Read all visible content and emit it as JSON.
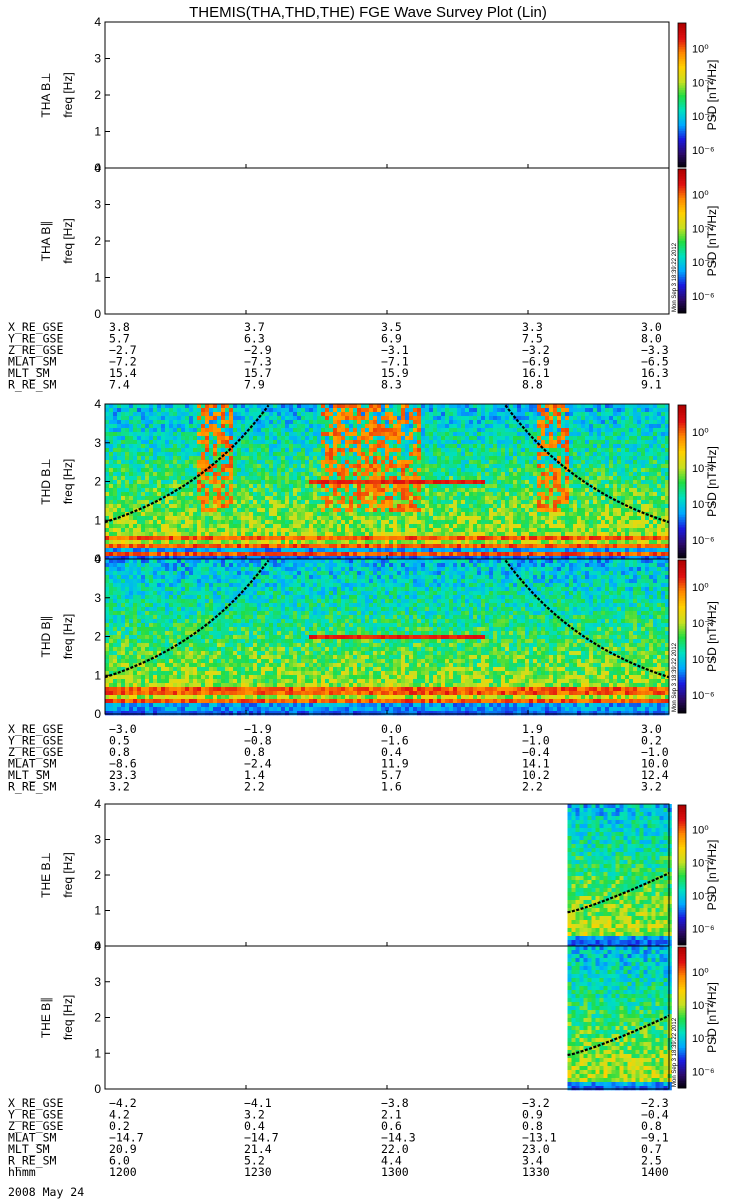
{
  "title": "THEMIS(THA,THD,THE) FGE Wave Survey Plot (Lin)",
  "date": "2008 May 24",
  "stamp": "Mon Sep  3 18:39:22 2012",
  "colorbar": {
    "label": "PSD [nT²/Hz]",
    "ticks": [
      "10⁰",
      "10⁻²",
      "10⁻⁴",
      "10⁻⁶"
    ],
    "tick_values": [
      0,
      -2,
      -4,
      -6
    ],
    "log_range": [
      -7,
      1.5
    ],
    "colors": [
      "#000000",
      "#2b0a6b",
      "#1a1adf",
      "#00aaff",
      "#00e0c0",
      "#22dd44",
      "#c8e020",
      "#ffd000",
      "#ff8800",
      "#e01010",
      "#b00000"
    ]
  },
  "panel_labels": {
    "tha": [
      "THA B⊥",
      "THA B∥"
    ],
    "thd": [
      "THD B⊥",
      "THD B∥"
    ],
    "the": [
      "THE B⊥",
      "THE B∥"
    ]
  },
  "freq_label": "freq [Hz]",
  "y_ticks": [
    "0",
    "1",
    "2",
    "3",
    "4"
  ],
  "ephem_labels": {
    "tha": [
      "X_RE_GSE",
      "Y_RE_GSE",
      "Z_RE_GSE",
      "MLAT_SM",
      "MLT_SM",
      "R_RE_SM"
    ],
    "thd": [
      "X_RE_GSE",
      "Y_RE_GSE",
      "Z_RE_GSE",
      "MLAT_SM",
      "MLT_SM",
      "R_RE_SM"
    ],
    "the": [
      "X_RE_GSE",
      "Y_RE_GSE",
      "Z_RE_GSE",
      "MLAT_SM",
      "MLT_SM",
      "R_RE_SM",
      "hhmm"
    ]
  },
  "ephem_values": {
    "tha": [
      [
        "3.8",
        "3.7",
        "3.5",
        "3.3",
        "3.0"
      ],
      [
        "5.7",
        "6.3",
        "6.9",
        "7.5",
        "8.0"
      ],
      [
        "−2.7",
        "−2.9",
        "−3.1",
        "−3.2",
        "−3.3"
      ],
      [
        "−7.2",
        "−7.3",
        "−7.1",
        "−6.9",
        "−6.5"
      ],
      [
        "15.4",
        "15.7",
        "15.9",
        "16.1",
        "16.3"
      ],
      [
        "7.4",
        "7.9",
        "8.3",
        "8.8",
        "9.1"
      ]
    ],
    "thd": [
      [
        "−3.0",
        "−1.9",
        "0.0",
        "1.9",
        "3.0"
      ],
      [
        "0.5",
        "−0.8",
        "−1.6",
        "−1.0",
        "0.2"
      ],
      [
        "0.8",
        "0.8",
        "0.4",
        "−0.4",
        "−1.0"
      ],
      [
        "−8.6",
        "−2.4",
        "11.9",
        "14.1",
        "10.0"
      ],
      [
        "23.3",
        "1.4",
        "5.7",
        "10.2",
        "12.4"
      ],
      [
        "3.2",
        "2.2",
        "1.6",
        "2.2",
        "3.2"
      ]
    ],
    "the": [
      [
        "−4.2",
        "−4.1",
        "−3.8",
        "−3.2",
        "−2.3"
      ],
      [
        "4.2",
        "3.2",
        "2.1",
        "0.9",
        "−0.4"
      ],
      [
        "0.2",
        "0.4",
        "0.6",
        "0.8",
        "0.8"
      ],
      [
        "−14.7",
        "−14.7",
        "−14.3",
        "−13.1",
        "−9.1"
      ],
      [
        "20.9",
        "21.4",
        "22.0",
        "23.0",
        "0.7"
      ],
      [
        "6.0",
        "5.2",
        "4.4",
        "3.4",
        "2.5"
      ],
      [
        "1200",
        "1230",
        "1300",
        "1330",
        "1400"
      ]
    ]
  },
  "chart_data": {
    "type": "heatmap",
    "title": "THEMIS(THA,THD,THE) FGE Wave Survey Plot (Lin)",
    "xlabel": "hhmm",
    "x_range": [
      "1200",
      "1400"
    ],
    "ylabel": "freq [Hz]",
    "ylim": [
      0,
      4
    ],
    "zlabel": "PSD [nT²/Hz]",
    "zscale": "log",
    "zlim": [
      1e-07,
      30
    ],
    "panels": [
      {
        "name": "THA B⊥",
        "data_coverage_x": null
      },
      {
        "name": "THA B∥",
        "data_coverage_x": null
      },
      {
        "name": "THD B⊥",
        "data_coverage_x": [
          0,
          1
        ],
        "gyro_curve_freq_hz": {
          "at_1200": 0.95,
          "at_1400": 0.85
        },
        "enhanced_bands_hz": [
          0.15,
          0.35,
          0.55,
          2.0
        ]
      },
      {
        "name": "THD B∥",
        "data_coverage_x": [
          0,
          1
        ],
        "gyro_curve_freq_hz": {
          "at_1200": 0.95,
          "at_1400": 0.85
        },
        "enhanced_bands_hz": [
          0.35,
          0.6,
          2.0
        ]
      },
      {
        "name": "THE B⊥",
        "data_coverage_x": [
          0.82,
          1
        ],
        "gyro_curve_freq_hz": {
          "at_start": 0.95,
          "at_1400": 2.05
        }
      },
      {
        "name": "THE B∥",
        "data_coverage_x": [
          0.82,
          1
        ],
        "gyro_curve_freq_hz": {
          "at_start": 0.95,
          "at_1400": 2.05
        }
      }
    ]
  }
}
